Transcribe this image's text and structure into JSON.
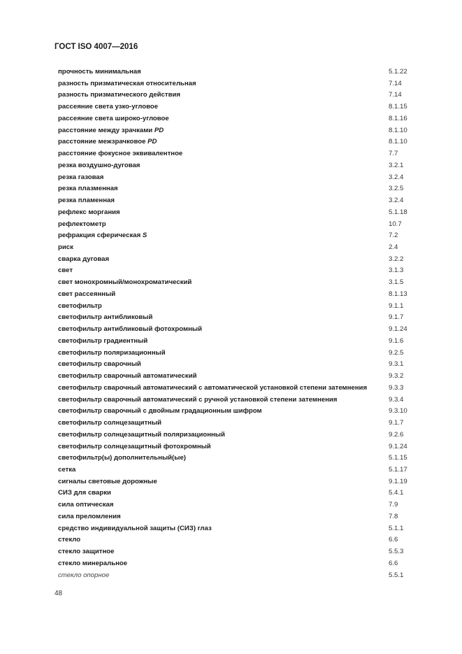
{
  "header": {
    "title": "ГОСТ ISO 4007—2016"
  },
  "entries": [
    {
      "term": "прочность минимальная",
      "ref": "5.1.22"
    },
    {
      "term": "разность призматическая относительная",
      "ref": "7.14"
    },
    {
      "term": "разность призматического действия",
      "ref": "7.14"
    },
    {
      "term": "рассеяние света узко-угловое",
      "ref": "8.1.15"
    },
    {
      "term": "рассеяние света широко-угловое",
      "ref": "8.1.16"
    },
    {
      "term": "расстояние между зрачками ",
      "symbol": "PD",
      "ref": "8.1.10"
    },
    {
      "term": "расстояние межзрачковое ",
      "symbol": "PD",
      "ref": "8.1.10"
    },
    {
      "term": "расстояние фокусное эквивалентное",
      "ref": "7.7"
    },
    {
      "term": "резка воздушно-дуговая",
      "ref": "3.2.1"
    },
    {
      "term": "резка газовая",
      "ref": "3.2.4"
    },
    {
      "term": "резка плазменная",
      "ref": "3.2.5"
    },
    {
      "term": "резка пламенная",
      "ref": "3.2.4"
    },
    {
      "term": "рефлекс моргания",
      "ref": "5.1.18"
    },
    {
      "term": "рефлектометр",
      "ref": "10.7"
    },
    {
      "term": "рефракция сферическая ",
      "symbol": "S",
      "ref": "7.2"
    },
    {
      "term": "риск",
      "ref": "2.4"
    },
    {
      "term": "сварка дуговая",
      "ref": "3.2.2"
    },
    {
      "term": "свет",
      "ref": "3.1.3"
    },
    {
      "term": "свет монохромный/монохроматический",
      "ref": "3.1.5"
    },
    {
      "term": "свет рассеянный",
      "ref": "8.1.13"
    },
    {
      "term": "светофильтр",
      "ref": "9.1.1"
    },
    {
      "term": "светофильтр антибликовый",
      "ref": "9.1.7"
    },
    {
      "term": "светофильтр антибликовый фотохромный",
      "ref": "9.1.24"
    },
    {
      "term": "светофильтр градиентный",
      "ref": "9.1.6"
    },
    {
      "term": "светофильтр поляризационный",
      "ref": "9.2.5"
    },
    {
      "term": "светофильтр сварочный",
      "ref": "9.3.1"
    },
    {
      "term": "светофильтр сварочный автоматический",
      "ref": "9.3.2"
    },
    {
      "term": "светофильтр сварочный автоматический с автоматической установкой степени затемнения",
      "ref": "9.3.3"
    },
    {
      "term": "светофильтр сварочный автоматический с ручной установкой степени затемнения",
      "ref": "9.3.4"
    },
    {
      "term": "светофильтр сварочный с двойным градационным шифром",
      "ref": "9.3.10"
    },
    {
      "term": "светофильтр солнцезащитный",
      "ref": "9.1.7"
    },
    {
      "term": "светофильтр солнцезащитный поляризационный",
      "ref": "9.2.6"
    },
    {
      "term": "светофильтр солнцезащитный фотохромный",
      "ref": "9.1.24"
    },
    {
      "term": "светофильтр(ы) дополнительный(ые)",
      "ref": "5.1.15"
    },
    {
      "term": "сетка",
      "ref": "5.1.17"
    },
    {
      "term": "сигналы световые дорожные",
      "ref": "9.1.19"
    },
    {
      "term": "СИЗ для сварки",
      "ref": "5.4.1"
    },
    {
      "term": "сила оптическая",
      "ref": "7.9"
    },
    {
      "term": "сила преломления",
      "ref": "7.8"
    },
    {
      "term": "средство индивидуальной защиты (СИЗ) глаз",
      "ref": "5.1.1"
    },
    {
      "term": "стекло",
      "ref": "6.6"
    },
    {
      "term": "стекло защитное",
      "ref": "5.5.3"
    },
    {
      "term": "стекло минеральное",
      "ref": "6.6"
    },
    {
      "term": "стекло опорное",
      "ref": "5.5.1",
      "style": "italic"
    }
  ],
  "footer": {
    "page_number": "48"
  }
}
